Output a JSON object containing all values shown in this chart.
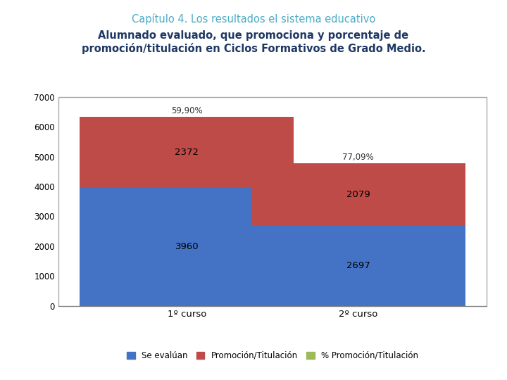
{
  "title_line1": "Capítulo 4. Los resultados el sistema educativo",
  "title_line2": "Alumnado evaluado, que promociona y porcentaje de\npromoción/titulación en Ciclos Formativos de Grado Medio.",
  "categories": [
    "1º curso",
    "2º curso"
  ],
  "se_evaluan": [
    3960,
    2697
  ],
  "promocion": [
    2372,
    2079
  ],
  "pct_labels": [
    "59,90%",
    "77,09%"
  ],
  "color_blue": "#4472C4",
  "color_red": "#BE4B48",
  "color_green": "#9BBB59",
  "legend_labels": [
    "Se evalúan",
    "Promoción/Titulación",
    "% Promoción/Titulación"
  ],
  "ylim": [
    0,
    7000
  ],
  "yticks": [
    0,
    1000,
    2000,
    3000,
    4000,
    5000,
    6000,
    7000
  ],
  "background_color": "#ffffff",
  "title1_color": "#4BACC6",
  "title2_color": "#1F3864",
  "bar_width": 0.5
}
